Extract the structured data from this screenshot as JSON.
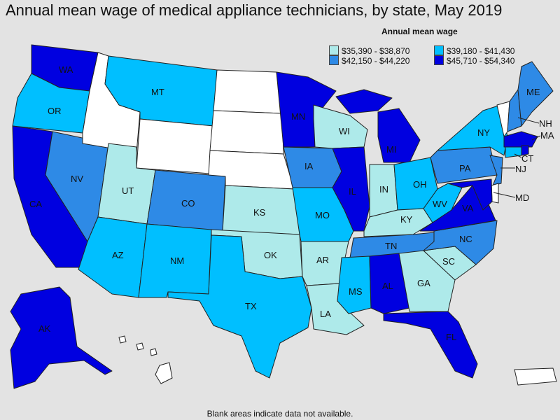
{
  "title": "Annual mean wage of medical appliance technicians, by state, May 2019",
  "legend": {
    "title": "Annual mean wage",
    "items": [
      {
        "label": "$35,390 - $38,870",
        "color": "#aeeaea"
      },
      {
        "label": "$39,180 - $41,430",
        "color": "#00bfff"
      },
      {
        "label": "$42,150 - $44,220",
        "color": "#2e8ae6"
      },
      {
        "label": "$45,710 - $54,340",
        "color": "#0000e0"
      }
    ]
  },
  "states": {
    "WA": {
      "label": "WA",
      "class": 4
    },
    "OR": {
      "label": "OR",
      "class": 2
    },
    "CA": {
      "label": "CA",
      "class": 4
    },
    "NV": {
      "label": "NV",
      "class": 3
    },
    "ID": {
      "label": "",
      "class": 0
    },
    "MT": {
      "label": "MT",
      "class": 2
    },
    "WY": {
      "label": "",
      "class": 0
    },
    "UT": {
      "label": "UT",
      "class": 1
    },
    "AZ": {
      "label": "AZ",
      "class": 2
    },
    "CO": {
      "label": "CO",
      "class": 3
    },
    "NM": {
      "label": "NM",
      "class": 2
    },
    "ND": {
      "label": "",
      "class": 0
    },
    "SD": {
      "label": "",
      "class": 0
    },
    "NE": {
      "label": "",
      "class": 0
    },
    "KS": {
      "label": "KS",
      "class": 1
    },
    "OK": {
      "label": "OK",
      "class": 1
    },
    "TX": {
      "label": "TX",
      "class": 2
    },
    "MN": {
      "label": "MN",
      "class": 4
    },
    "IA": {
      "label": "IA",
      "class": 3
    },
    "MO": {
      "label": "MO",
      "class": 2
    },
    "AR": {
      "label": "AR",
      "class": 1
    },
    "LA": {
      "label": "LA",
      "class": 1
    },
    "WI": {
      "label": "WI",
      "class": 1
    },
    "IL": {
      "label": "IL",
      "class": 4
    },
    "MI": {
      "label": "MI",
      "class": 4
    },
    "IN": {
      "label": "IN",
      "class": 1
    },
    "OH": {
      "label": "OH",
      "class": 2
    },
    "KY": {
      "label": "KY",
      "class": 1
    },
    "TN": {
      "label": "TN",
      "class": 3
    },
    "MS": {
      "label": "MS",
      "class": 2
    },
    "AL": {
      "label": "AL",
      "class": 4
    },
    "GA": {
      "label": "GA",
      "class": 1
    },
    "FL": {
      "label": "FL",
      "class": 4
    },
    "SC": {
      "label": "SC",
      "class": 1
    },
    "NC": {
      "label": "NC",
      "class": 3
    },
    "VA": {
      "label": "VA",
      "class": 4
    },
    "WV": {
      "label": "WV",
      "class": 2
    },
    "PA": {
      "label": "PA",
      "class": 3
    },
    "NY": {
      "label": "NY",
      "class": 2
    },
    "ME": {
      "label": "ME",
      "class": 3
    },
    "NH": {
      "label": "NH",
      "class": 3
    },
    "VT": {
      "label": "",
      "class": 0
    },
    "MA": {
      "label": "MA",
      "class": 4
    },
    "CT": {
      "label": "CT",
      "class": 2
    },
    "RI": {
      "label": "",
      "class": 4
    },
    "NJ": {
      "label": "NJ",
      "class": 3
    },
    "DE": {
      "label": "",
      "class": 0
    },
    "MD": {
      "label": "MD",
      "class": 4
    },
    "AK": {
      "label": "AK",
      "class": 4
    },
    "HI": {
      "label": "",
      "class": 0
    },
    "PR": {
      "label": "",
      "class": 0
    }
  },
  "footnote": "Blank areas indicate data not available."
}
